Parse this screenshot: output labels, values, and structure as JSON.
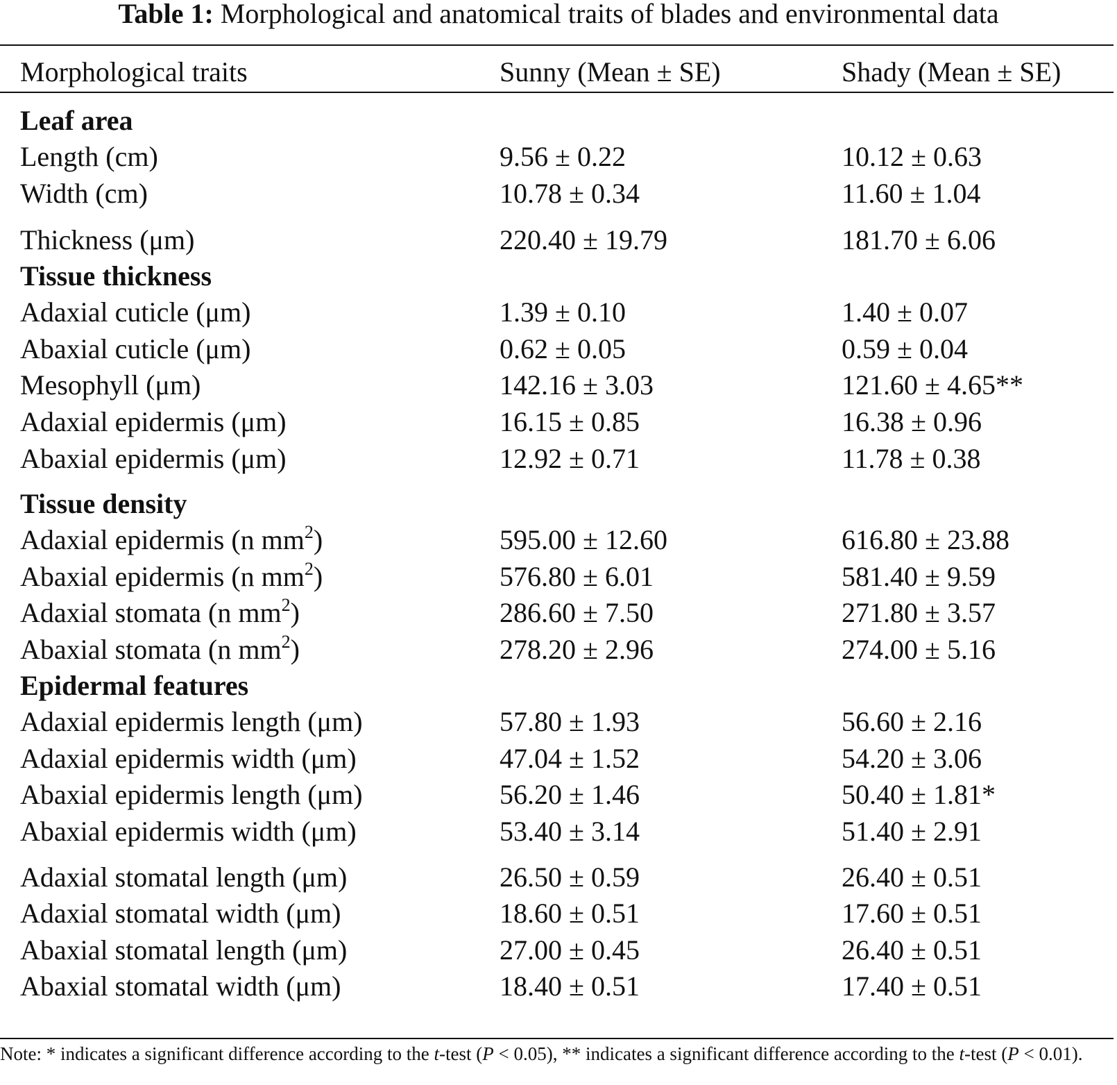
{
  "caption": {
    "label": "Table 1:",
    "text": "Morphological and anatomical traits of blades and environmental data"
  },
  "columns": {
    "trait": "Morphological traits",
    "sunny": "Sunny (Mean ± SE)",
    "shady": "Shady (Mean ± SE)"
  },
  "rows": [
    {
      "kind": "section",
      "trait": "Leaf area",
      "sunny": "",
      "shady": ""
    },
    {
      "kind": "data",
      "trait": "Length (cm)",
      "sunny": "9.56 ± 0.22",
      "shady": "10.12 ± 0.63"
    },
    {
      "kind": "data",
      "trait": "Width (cm)",
      "sunny": "10.78 ± 0.34",
      "shady": "11.60 ± 1.04"
    },
    {
      "kind": "data",
      "trait": "Thickness (μm)",
      "sunny": "220.40 ± 19.79",
      "shady": "181.70 ± 6.06"
    },
    {
      "kind": "section",
      "trait": "Tissue thickness",
      "sunny": "",
      "shady": ""
    },
    {
      "kind": "data",
      "trait": "Adaxial cuticle (μm)",
      "sunny": "1.39 ± 0.10",
      "shady": "1.40 ± 0.07"
    },
    {
      "kind": "data",
      "trait": "Abaxial cuticle (μm)",
      "sunny": "0.62 ± 0.05",
      "shady": "0.59 ± 0.04"
    },
    {
      "kind": "data",
      "trait": "Mesophyll (μm)",
      "sunny": "142.16 ± 3.03",
      "shady": "121.60 ± 4.65**"
    },
    {
      "kind": "data",
      "trait": "Adaxial epidermis (μm)",
      "sunny": "16.15 ± 0.85",
      "shady": "16.38 ± 0.96"
    },
    {
      "kind": "data",
      "trait": "Abaxial epidermis (μm)",
      "sunny": "12.92 ± 0.71",
      "shady": "11.78 ± 0.38"
    },
    {
      "kind": "section",
      "trait": "Tissue density",
      "sunny": "",
      "shady": ""
    },
    {
      "kind": "data",
      "trait": "Adaxial epidermis (n mm",
      "sup": "2",
      "trait_end": ")",
      "sunny": "595.00 ± 12.60",
      "shady": "616.80 ± 23.88"
    },
    {
      "kind": "data",
      "trait": "Abaxial epidermis (n mm",
      "sup": "2",
      "trait_end": ")",
      "sunny": "576.80 ± 6.01",
      "shady": "581.40 ± 9.59"
    },
    {
      "kind": "data",
      "trait": "Adaxial stomata (n mm",
      "sup": "2",
      "trait_end": ")",
      "sunny": "286.60 ± 7.50",
      "shady": "271.80 ± 3.57"
    },
    {
      "kind": "data",
      "trait": "Abaxial stomata (n mm",
      "sup": "2",
      "trait_end": ")",
      "sunny": "278.20 ± 2.96",
      "shady": "274.00 ± 5.16"
    },
    {
      "kind": "section",
      "trait": "Epidermal features",
      "sunny": "",
      "shady": ""
    },
    {
      "kind": "data",
      "trait": "Adaxial epidermis length (μm)",
      "sunny": "57.80 ± 1.93",
      "shady": "56.60 ± 2.16"
    },
    {
      "kind": "data",
      "trait": "Adaxial epidermis width (μm)",
      "sunny": "47.04 ± 1.52",
      "shady": "54.20 ± 3.06"
    },
    {
      "kind": "data",
      "trait": "Abaxial epidermis length (μm)",
      "sunny": "56.20 ± 1.46",
      "shady": "50.40 ± 1.81*"
    },
    {
      "kind": "data",
      "trait": "Abaxial epidermis width (μm)",
      "sunny": "53.40 ± 3.14",
      "shady": "51.40 ± 2.91"
    },
    {
      "kind": "data",
      "trait": "Adaxial stomatal length (μm)",
      "sunny": "26.50 ± 0.59",
      "shady": "26.40 ± 0.51"
    },
    {
      "kind": "data",
      "trait": "Adaxial stomatal width (μm)",
      "sunny": "18.60 ± 0.51",
      "shady": "17.60 ± 0.51"
    },
    {
      "kind": "data",
      "trait": "Abaxial stomatal length (μm)",
      "sunny": "27.00 ± 0.45",
      "shady": "26.40 ± 0.51"
    },
    {
      "kind": "data",
      "trait": "Abaxial stomatal width (μm)",
      "sunny": "18.40 ± 0.51",
      "shady": "17.40 ± 0.51"
    }
  ],
  "note": {
    "part1": "Note: * indicates a significant difference according to the ",
    "t1": "t",
    "part2": "-test (",
    "p1": "P",
    "part3": " < 0.05), ** indicates a significant difference according to the ",
    "t2": "t",
    "part4": "-test (",
    "p2": "P",
    "part5": " < 0.01)."
  }
}
